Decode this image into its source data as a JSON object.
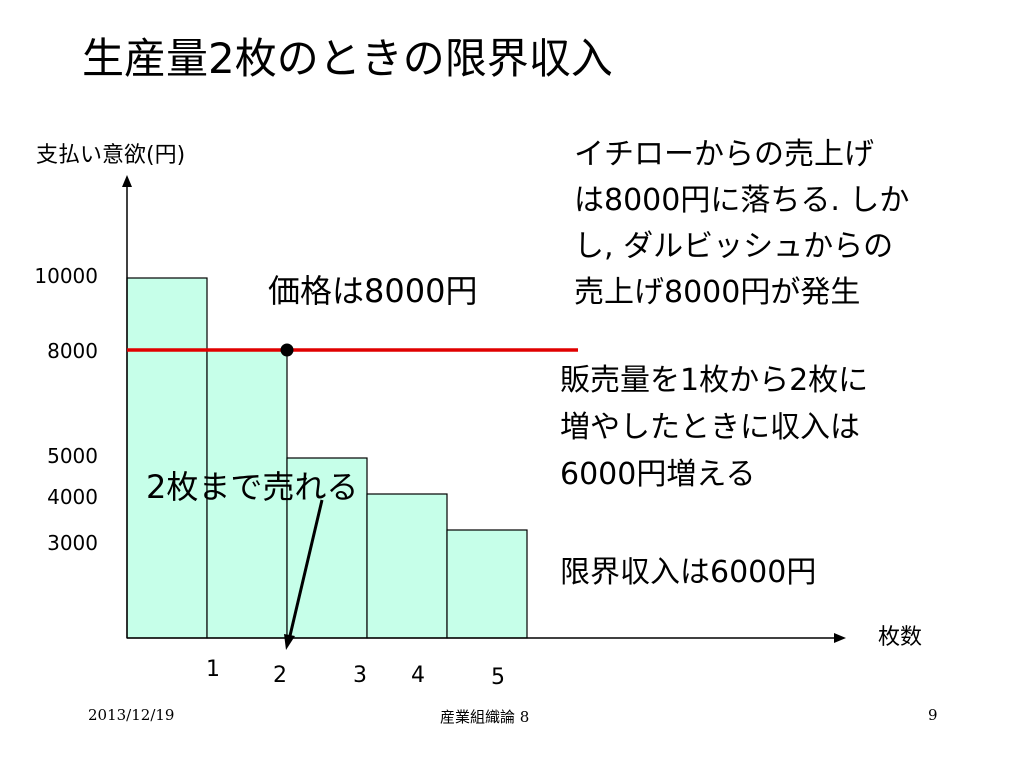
{
  "slide": {
    "title": "生産量2枚のときの限界収入",
    "annotations": {
      "ichiro": [
        "イチローからの売上げ",
        "は8000円に落ちる. しか",
        "し, ダルビッシュからの",
        "売上げ8000円が発生"
      ],
      "revenue_increase": [
        "販売量を1枚から2枚に",
        "増やしたときに収入は",
        "6000円増える"
      ],
      "marginal_revenue": "限界収入は6000円",
      "price": "価格は8000円",
      "sell_up_to": "2枚まで売れる"
    }
  },
  "footer": {
    "date": "2013/12/19",
    "course": "産業組織論 8",
    "page": "9"
  },
  "colors": {
    "bar_fill": "#c6ffe9",
    "bar_stroke": "#000000",
    "price_line": "#e00000"
  },
  "chart_data": {
    "type": "bar",
    "ylabel": "支払い意欲(円)",
    "xlabel": "枚数",
    "categories": [
      "1",
      "2",
      "3",
      "4",
      "5"
    ],
    "values": [
      10000,
      8000,
      5000,
      4000,
      3000
    ],
    "y_tick_labels": [
      "10000",
      "8000",
      "5000",
      "4000",
      "3000"
    ],
    "ylim": [
      0,
      13000
    ],
    "grid": false,
    "reference_line": {
      "y": 8000,
      "color": "red"
    },
    "point": {
      "x": 2,
      "y": 8000
    }
  }
}
